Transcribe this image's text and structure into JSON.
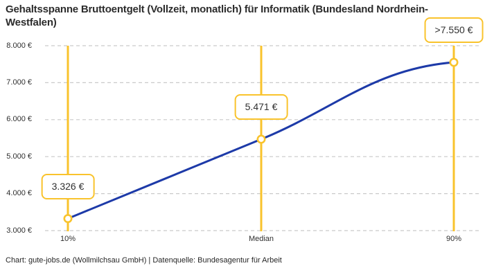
{
  "title": "Gehaltsspanne Bruttoentgelt (Vollzeit, monatlich) für Informatik (Bundesland Nordrhein-Westfalen)",
  "footer": "Chart: gute-jobs.de (Wollmilchsau GmbH) | Datenquelle: Bundesagentur für Arbeit",
  "chart_data": {
    "type": "line",
    "title": "Gehaltsspanne Bruttoentgelt (Vollzeit, monatlich) für Informatik (Bundesland Nordrhein-Westfalen)",
    "categories": [
      "10%",
      "Median",
      "90%"
    ],
    "points": [
      {
        "label": "10%",
        "value": 3326,
        "display": "3.326 €"
      },
      {
        "label": "Median",
        "value": 5471,
        "display": "5.471 €"
      },
      {
        "label": "90%",
        "value": 7550,
        "display": ">7.550 €"
      }
    ],
    "ylim": [
      3000,
      8000
    ],
    "y_ticks": [
      {
        "value": 3000,
        "label": "3.000 €"
      },
      {
        "value": 4000,
        "label": "4.000 €"
      },
      {
        "value": 5000,
        "label": "5.000 €"
      },
      {
        "value": 6000,
        "label": "6.000 €"
      },
      {
        "value": 7000,
        "label": "7.000 €"
      },
      {
        "value": 8000,
        "label": "8.000 €"
      }
    ],
    "grid": "horizontal-dashed",
    "legend": "none",
    "colors": {
      "line": "#1d3aa8",
      "accent": "#f9c32c",
      "grid": "#c9c9c9",
      "text": "#2c2c2c",
      "marker_fill": "#ffffff"
    }
  }
}
